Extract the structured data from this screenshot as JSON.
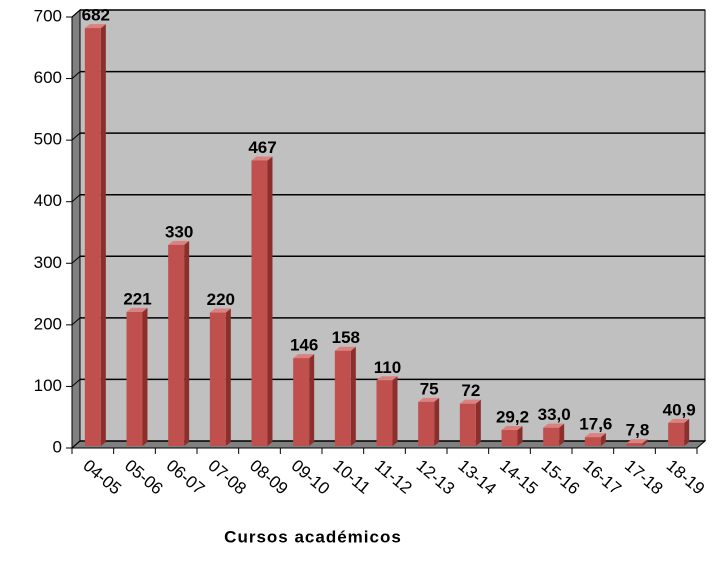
{
  "chart_data": {
    "type": "bar",
    "x_label": "Cursos académicos",
    "categories": [
      "04-05",
      "05-06",
      "06-07",
      "07-08",
      "08-09",
      "09-10",
      "10-11",
      "11-12",
      "12-13",
      "13-14",
      "14-15",
      "15-16",
      "16-17",
      "17-18",
      "18-19"
    ],
    "values": [
      682,
      221,
      330,
      220,
      467,
      146,
      158,
      110,
      75,
      72,
      29.2,
      33.0,
      17.6,
      7.8,
      40.9
    ],
    "value_labels": [
      "682",
      "221",
      "330",
      "220",
      "467",
      "146",
      "158",
      "110",
      "75",
      "72",
      "29,2",
      "33,0",
      "17,6",
      "7,8",
      "40,9"
    ],
    "color": "#c0504d",
    "ylim": [
      0,
      700
    ],
    "yticks": [
      0,
      100,
      200,
      300,
      400,
      500,
      600,
      700
    ],
    "grid": true
  }
}
